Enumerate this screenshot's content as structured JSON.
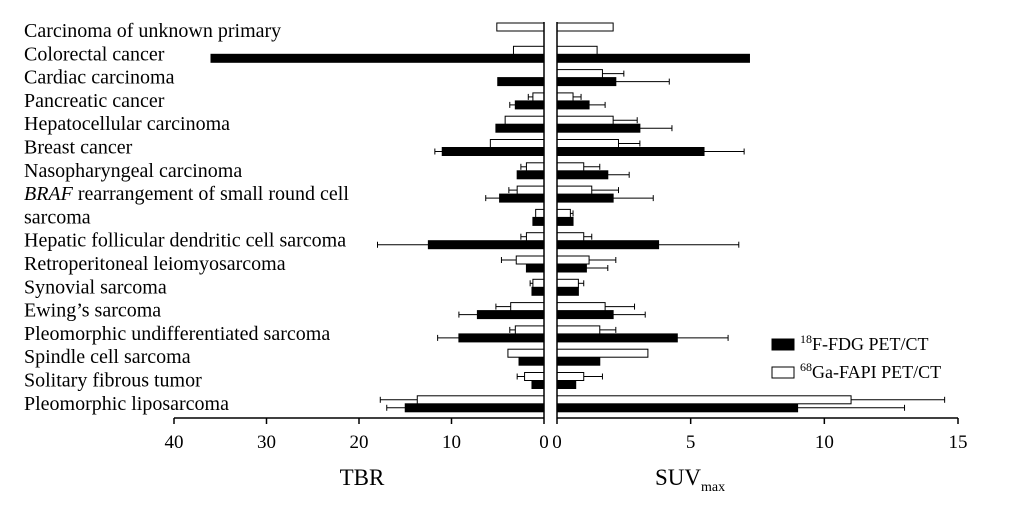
{
  "chart_data": {
    "type": "bar",
    "orientation": "horizontal",
    "layout": "back-to-back",
    "categories": [
      {
        "label": "Carcinoma of unknown primary"
      },
      {
        "label": "Colorectal cancer"
      },
      {
        "label": "Cardiac carcinoma"
      },
      {
        "label": "Pancreatic cancer"
      },
      {
        "label": "Hepatocellular carcinoma"
      },
      {
        "label": "Breast cancer"
      },
      {
        "label": "Nasopharyngeal carcinoma"
      },
      {
        "label_italic": "BRAF",
        "label": " rearrangement of small round cell"
      },
      {
        "label": "sarcoma"
      },
      {
        "label": "Hepatic follicular dendritic cell sarcoma"
      },
      {
        "label": "Retroperitoneal leiomyosarcoma"
      },
      {
        "label": "Synovial sarcoma"
      },
      {
        "label": "Ewing’s sarcoma"
      },
      {
        "label": "Pleomorphic undifferentiated sarcoma"
      },
      {
        "label": "Spindle cell sarcoma"
      },
      {
        "label": "Solitary fibrous tumor"
      },
      {
        "label": "Pleomorphic liposarcoma"
      }
    ],
    "left_axis": {
      "title": "TBR",
      "range": [
        40,
        0
      ],
      "ticks": [
        "40",
        "30",
        "20",
        "10",
        "0"
      ],
      "tick_values": [
        40,
        30,
        20,
        10,
        0
      ]
    },
    "right_axis": {
      "title": "SUV",
      "title_subscript": "max",
      "range": [
        0,
        15
      ],
      "ticks": [
        "0",
        "5",
        "10",
        "15"
      ],
      "tick_values": [
        0,
        5,
        10,
        15
      ]
    },
    "series": [
      {
        "name_sup": "18",
        "name": "F-FDG PET/CT",
        "fill": "#000000",
        "tbr": [
          null,
          36,
          5,
          3.1,
          5.2,
          11,
          2.9,
          4.8,
          1.2,
          12.5,
          1.9,
          1.3,
          7.2,
          9.2,
          2.7,
          1.3,
          15
        ],
        "tbr_err": [
          null,
          0,
          0,
          0.6,
          0,
          0.8,
          0,
          1.5,
          0,
          5.5,
          0,
          0,
          2,
          2.3,
          0,
          0,
          2
        ],
        "suv": [
          null,
          7.2,
          2.2,
          1.2,
          3.1,
          5.5,
          1.9,
          2.1,
          0.6,
          3.8,
          1.1,
          0.8,
          2.1,
          4.5,
          1.6,
          0.7,
          9
        ],
        "suv_err": [
          null,
          0,
          2,
          0.6,
          1.2,
          1.5,
          0.8,
          1.5,
          0,
          3,
          0.8,
          0,
          1.2,
          1.9,
          0,
          0,
          4
        ]
      },
      {
        "name_sup": "68",
        "name": "Ga-FAPI PET/CT",
        "fill": "#ffffff",
        "tbr": [
          5.1,
          3.3,
          null,
          1.2,
          4.2,
          5.8,
          1.9,
          2.9,
          0.9,
          1.9,
          3,
          1.2,
          3.6,
          3.1,
          3.9,
          2.1,
          13.7
        ],
        "tbr_err": [
          0,
          0,
          null,
          0.5,
          0,
          0,
          0.6,
          0.9,
          0,
          0.6,
          1.6,
          0.3,
          1.6,
          0.6,
          0,
          0.8,
          4
        ],
        "suv": [
          2.1,
          1.5,
          1.7,
          0.6,
          2.1,
          2.3,
          1,
          1.3,
          0.5,
          1,
          1.2,
          0.8,
          1.8,
          1.6,
          3.4,
          1,
          11
        ],
        "suv_err": [
          0,
          0,
          0.8,
          0.3,
          0.9,
          0.8,
          0.6,
          1,
          0.1,
          0.3,
          1,
          0.2,
          1.1,
          0.6,
          0,
          0.7,
          3.5
        ]
      }
    ],
    "legend_position": "right, lower",
    "grid": false
  }
}
